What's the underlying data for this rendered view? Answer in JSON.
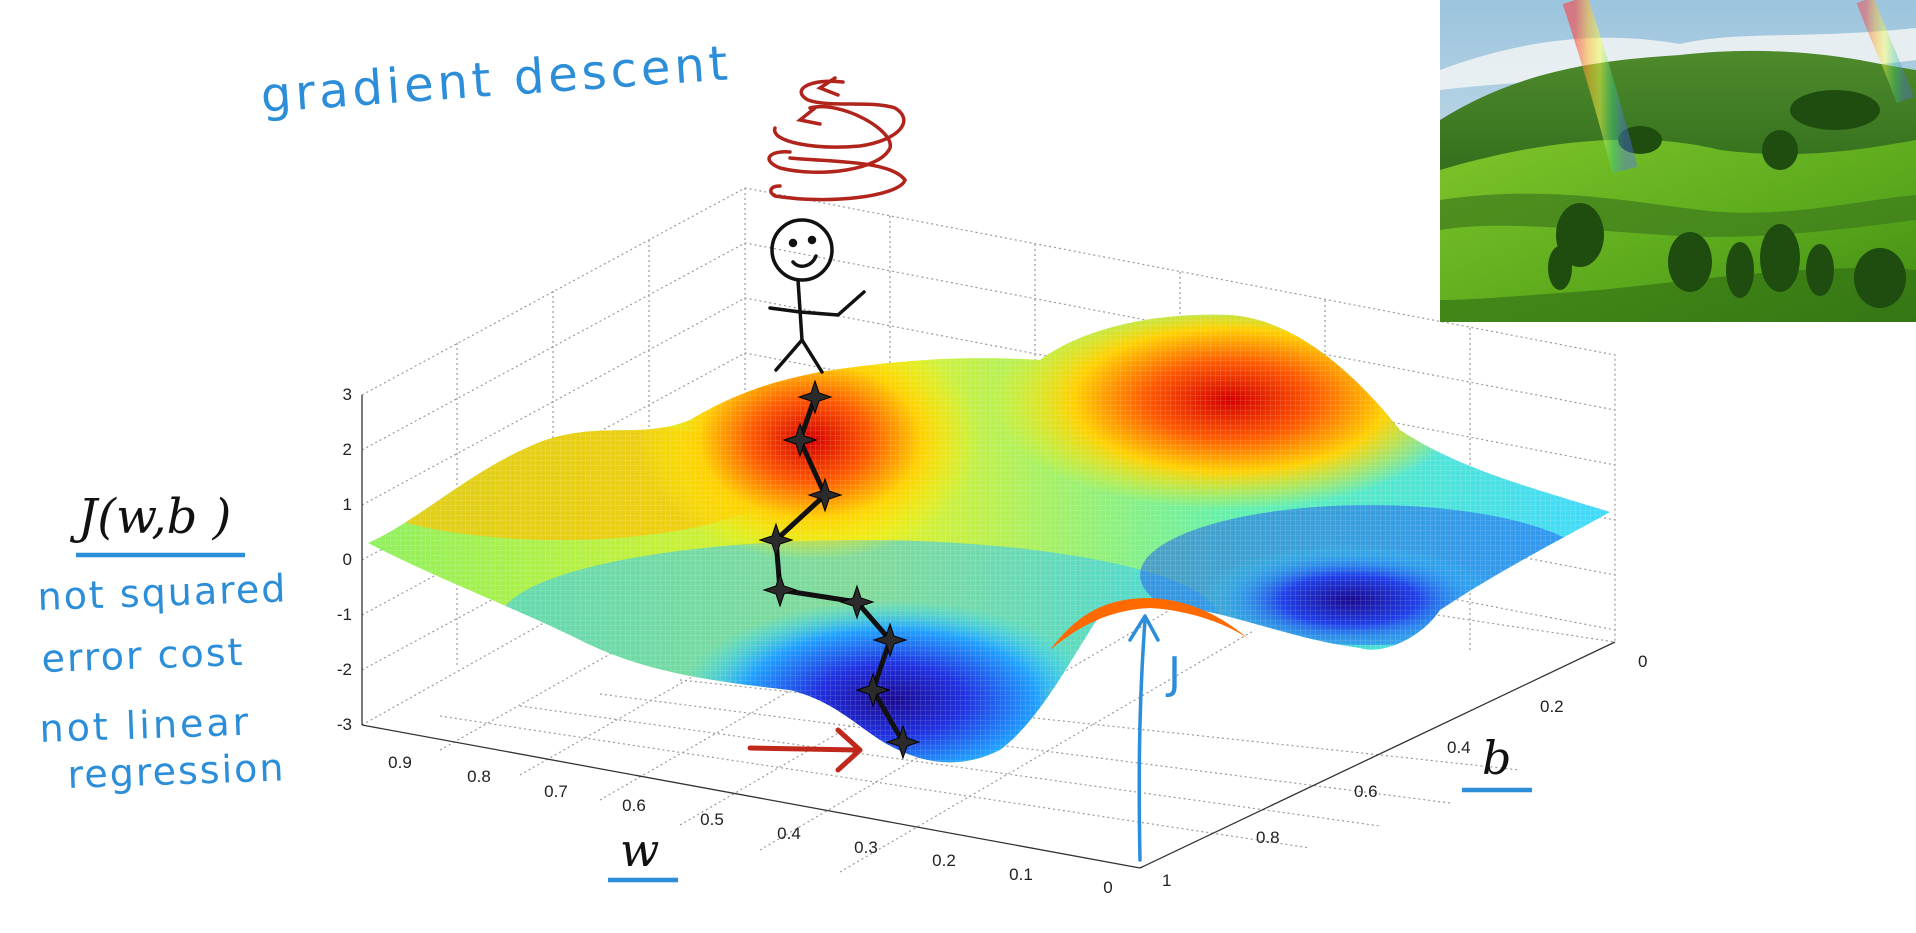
{
  "annotations": {
    "title": "gradient descent",
    "cost_label": "J(w,b )",
    "note_1a": "not squared",
    "note_1b": "error cost",
    "note_2a": "not linear",
    "note_2b": "regression",
    "w_label": "w",
    "b_label": "b",
    "j_label": "J"
  },
  "axes": {
    "z_ticks": [
      "3",
      "2",
      "1",
      "0",
      "-1",
      "-2",
      "-3"
    ],
    "w_ticks": [
      "0.9",
      "0.8",
      "0.7",
      "0.6",
      "0.5",
      "0.4",
      "0.3",
      "0.2",
      "0.1",
      "0"
    ],
    "b_ticks": [
      "0",
      "0.2",
      "0.4",
      "0.6",
      "0.8",
      "1"
    ]
  },
  "colors": {
    "handwriting_blue": "#2c8ed8",
    "swirl_red": "#b0241c",
    "arrow_red": "#c0281c",
    "grid": "#9a9a9a"
  },
  "icons": {
    "stick_figure": "stick-figure-icon",
    "path_marker": "star-marker-icon",
    "photo": "landscape-photo"
  }
}
